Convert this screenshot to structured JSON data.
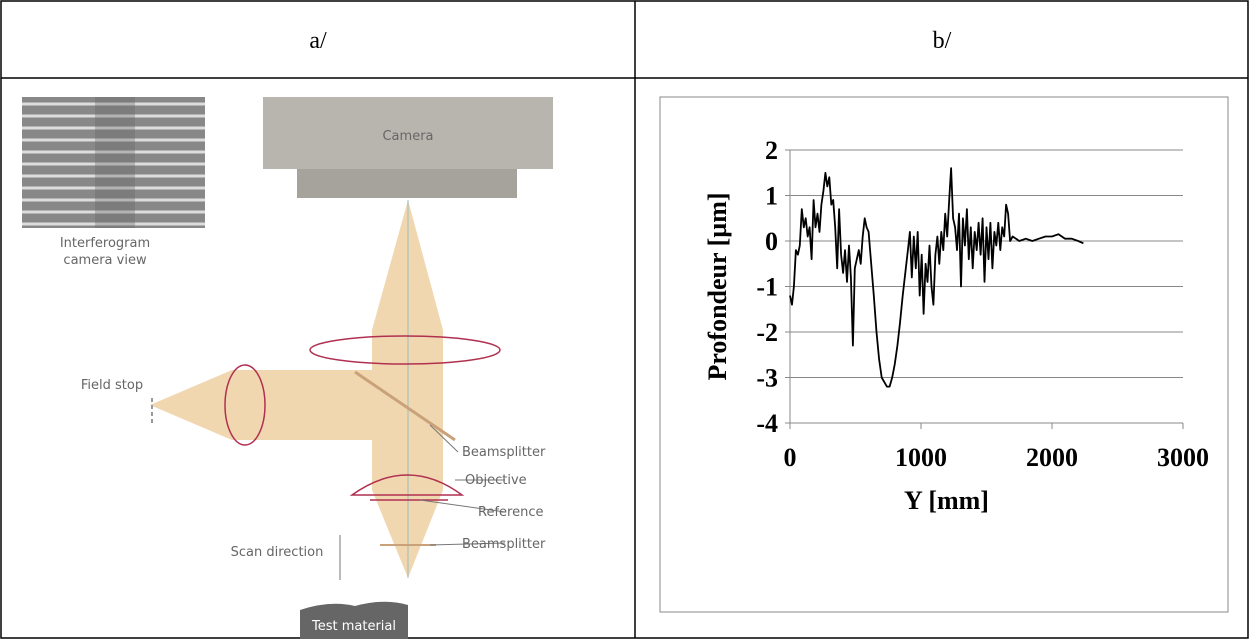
{
  "table": {
    "headers": [
      "a/",
      "b/"
    ]
  },
  "diagram": {
    "labels": [
      "Camera",
      "Interferogram",
      "camera view",
      "Field stop",
      "Beamsplitter",
      "Objective",
      "Reference",
      "Beamsplitter",
      "Scan direction",
      "Test material"
    ]
  },
  "chart_data": {
    "type": "line",
    "color": "#000000",
    "xlabel": "Y [mm]",
    "ylabel": "Profondeur [µm]",
    "xlim": [
      0,
      3000
    ],
    "xticks": [
      0,
      1000,
      2000,
      3000
    ],
    "ylim": [
      -4,
      2
    ],
    "yticks": [
      -4,
      -3,
      -2,
      -1,
      0,
      1,
      2
    ],
    "grid": true,
    "x": [
      0,
      15,
      30,
      45,
      60,
      75,
      90,
      105,
      120,
      135,
      150,
      165,
      180,
      195,
      210,
      225,
      240,
      255,
      270,
      285,
      300,
      315,
      330,
      345,
      360,
      375,
      390,
      405,
      420,
      435,
      450,
      465,
      480,
      495,
      510,
      525,
      540,
      555,
      570,
      585,
      600,
      620,
      640,
      660,
      680,
      700,
      720,
      740,
      760,
      780,
      800,
      820,
      840,
      860,
      880,
      900,
      915,
      930,
      945,
      960,
      975,
      990,
      1005,
      1020,
      1035,
      1050,
      1065,
      1080,
      1095,
      1110,
      1125,
      1140,
      1155,
      1170,
      1185,
      1200,
      1215,
      1230,
      1245,
      1260,
      1275,
      1290,
      1305,
      1320,
      1335,
      1350,
      1365,
      1380,
      1395,
      1410,
      1425,
      1440,
      1455,
      1470,
      1485,
      1500,
      1515,
      1530,
      1545,
      1560,
      1575,
      1590,
      1605,
      1620,
      1635,
      1650,
      1665,
      1680,
      1700,
      1750,
      1800,
      1850,
      1900,
      1950,
      2000,
      2050,
      2100,
      2150,
      2200,
      2240
    ],
    "values": [
      -1.2,
      -1.4,
      -1.0,
      -0.2,
      -0.3,
      -0.1,
      0.7,
      0.3,
      0.5,
      0.1,
      0.3,
      -0.4,
      0.9,
      0.3,
      0.6,
      0.2,
      0.8,
      1.1,
      1.5,
      1.2,
      1.4,
      0.8,
      0.9,
      0.3,
      -0.6,
      0.7,
      -0.3,
      -0.7,
      -0.2,
      -0.9,
      -0.1,
      -0.8,
      -2.3,
      -0.6,
      -0.4,
      -0.2,
      -0.5,
      0.1,
      0.5,
      0.3,
      0.2,
      -0.5,
      -1.2,
      -2.0,
      -2.6,
      -3.0,
      -3.1,
      -3.2,
      -3.2,
      -3.0,
      -2.7,
      -2.3,
      -1.8,
      -1.2,
      -0.7,
      -0.2,
      0.2,
      -0.8,
      0.1,
      -0.6,
      0.2,
      -1.2,
      -0.3,
      -1.6,
      -0.5,
      -0.9,
      -0.1,
      -1.0,
      -1.4,
      -0.3,
      0.1,
      -0.5,
      0.2,
      -0.2,
      0.6,
      0.1,
      0.9,
      1.6,
      0.5,
      0.3,
      -0.2,
      0.6,
      -1.0,
      0.5,
      -0.1,
      0.7,
      -0.4,
      0.3,
      -0.6,
      0.2,
      -0.2,
      0.4,
      -0.3,
      0.5,
      -0.9,
      0.3,
      -0.4,
      0.4,
      -0.6,
      0.2,
      -0.1,
      0.4,
      -0.2,
      0.3,
      0.1,
      0.8,
      0.6,
      0.0,
      0.1,
      0.0,
      0.05,
      0.0,
      0.05,
      0.1,
      0.1,
      0.15,
      0.05,
      0.05,
      0.0,
      -0.05
    ]
  }
}
